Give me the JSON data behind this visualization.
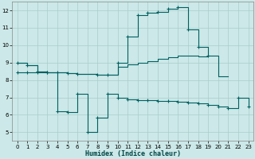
{
  "xlabel": "Humidex (Indice chaleur)",
  "x": [
    0,
    1,
    2,
    3,
    4,
    5,
    6,
    7,
    8,
    9,
    10,
    11,
    12,
    13,
    14,
    15,
    16,
    17,
    18,
    19,
    20,
    21,
    22,
    23
  ],
  "line1_x": [
    0,
    1,
    2,
    3,
    4,
    5,
    6,
    8,
    9,
    10,
    11,
    12,
    13,
    14,
    15,
    16,
    17,
    18,
    19
  ],
  "line1_y": [
    9.0,
    8.85,
    8.5,
    8.45,
    8.45,
    8.4,
    8.35,
    8.3,
    8.3,
    9.0,
    10.5,
    11.75,
    11.85,
    11.9,
    12.1,
    12.2,
    10.9,
    9.9,
    9.4
  ],
  "line2_x": [
    0,
    1,
    2,
    3,
    4,
    5,
    6,
    8,
    9,
    10,
    11,
    12,
    13,
    14,
    15,
    16,
    17,
    18,
    19,
    20,
    21
  ],
  "line2_y": [
    9.0,
    8.85,
    8.5,
    8.45,
    8.45,
    8.4,
    8.35,
    8.3,
    8.3,
    8.75,
    8.9,
    9.0,
    9.1,
    9.2,
    9.3,
    9.4,
    9.4,
    9.35,
    9.4,
    8.2,
    8.2
  ],
  "line3_x": [
    0,
    1,
    2,
    3,
    4,
    5,
    6,
    7,
    8,
    9,
    10,
    11,
    12,
    13,
    14,
    15,
    16,
    17,
    18,
    19,
    20,
    21,
    22,
    23
  ],
  "line3_y": [
    8.45,
    8.45,
    8.45,
    8.45,
    6.2,
    6.15,
    7.2,
    5.0,
    5.85,
    7.2,
    7.0,
    6.9,
    6.85,
    6.85,
    6.8,
    6.8,
    6.75,
    6.7,
    6.65,
    6.55,
    6.5,
    6.4,
    7.0,
    6.5
  ],
  "bg_color": "#cce8e8",
  "grid_color": "#aacccc",
  "line_color": "#006060",
  "ylim": [
    4.5,
    12.5
  ],
  "xlim": [
    -0.5,
    23.5
  ],
  "yticks": [
    5,
    6,
    7,
    8,
    9,
    10,
    11,
    12
  ],
  "xticks": [
    0,
    1,
    2,
    3,
    4,
    5,
    6,
    7,
    8,
    9,
    10,
    11,
    12,
    13,
    14,
    15,
    16,
    17,
    18,
    19,
    20,
    21,
    22,
    23
  ],
  "xlabel_fontsize": 6.0,
  "tick_fontsize": 5.0
}
